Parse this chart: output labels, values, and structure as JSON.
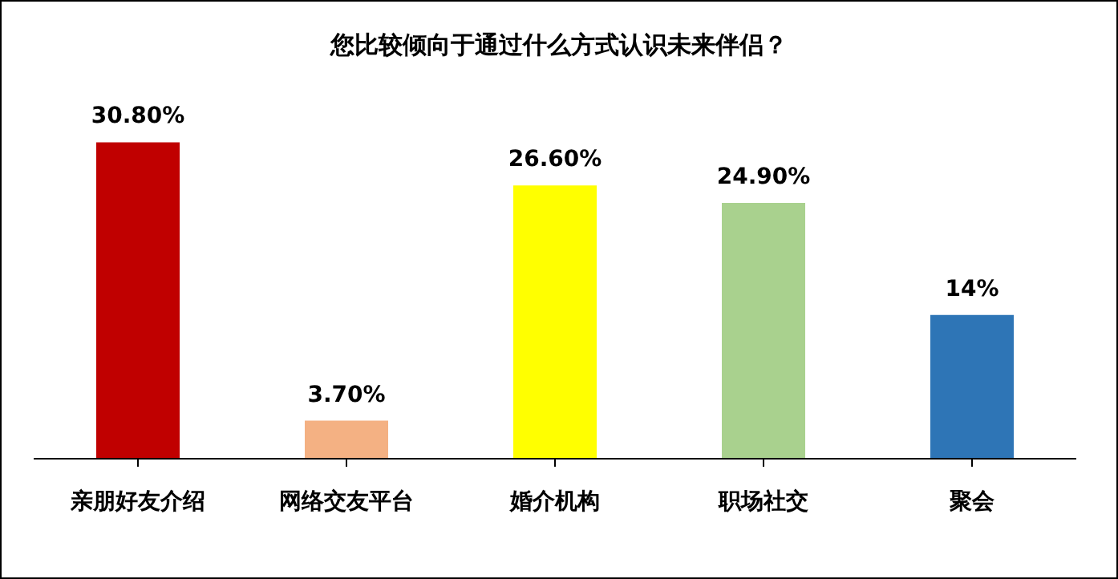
{
  "chart_data": {
    "type": "bar",
    "title": "您比较倾向于通过什么方式认识未来伴侣？",
    "categories": [
      "亲朋好友介绍",
      "网络交友平台",
      "婚介机构",
      "职场社交",
      "聚会"
    ],
    "values": [
      30.8,
      3.7,
      26.6,
      24.9,
      14
    ],
    "value_labels": [
      "30.80%",
      "3.70%",
      "26.60%",
      "24.90%",
      "14%"
    ],
    "colors": [
      "#c00000",
      "#f4b183",
      "#ffff00",
      "#a9d18e",
      "#2e75b6"
    ],
    "grid": false
  }
}
